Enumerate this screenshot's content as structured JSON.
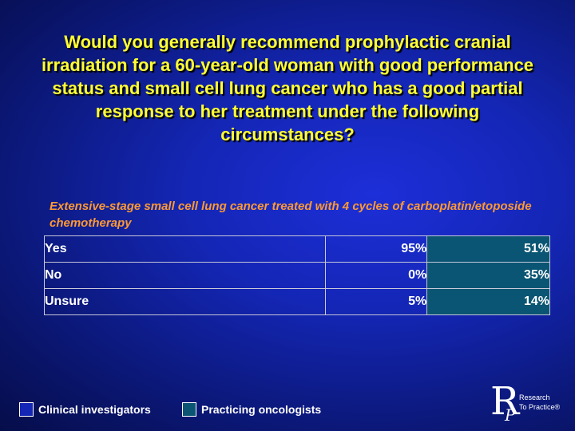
{
  "slide": {
    "title": "Would you generally recommend prophylactic cranial irradiation for a 60-year-old woman with good performance status and small cell lung cancer who has a good partial response to her treatment under the following circumstances?",
    "subtitle": "Extensive-stage small cell lung cancer treated with 4 cycles of carboplatin/etoposide chemotherapy"
  },
  "table": {
    "rows": [
      {
        "label": "Yes",
        "investigators": "95%",
        "oncologists": "51%"
      },
      {
        "label": "No",
        "investigators": "0%",
        "oncologists": "35%"
      },
      {
        "label": "Unsure",
        "investigators": "5%",
        "oncologists": "14%"
      }
    ]
  },
  "legend": {
    "investigators": {
      "label": "Clinical investigators",
      "color": "#1426b5"
    },
    "oncologists": {
      "label": "Practicing oncologists",
      "color": "#0a5573"
    }
  },
  "logo": {
    "line1": "Research",
    "line2": "To Practice®"
  }
}
